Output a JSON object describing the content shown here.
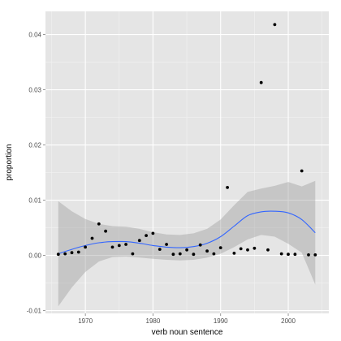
{
  "chart_data": {
    "type": "scatter",
    "title": "",
    "xlabel": "verb noun sentence",
    "ylabel": "proportion",
    "xlim": [
      1964.1,
      2006.0
    ],
    "ylim": [
      -0.0105,
      0.0442
    ],
    "x_ticks": [
      1970,
      1980,
      1990,
      2000
    ],
    "x_tick_labels": [
      "1970",
      "1980",
      "1990",
      "2000"
    ],
    "y_ticks": [
      -0.01,
      0.0,
      0.01,
      0.02,
      0.03,
      0.04
    ],
    "y_tick_labels": [
      "-0.01",
      "0.00",
      "0.01",
      "0.02",
      "0.03",
      "0.04"
    ],
    "grid": true,
    "colors": {
      "panel": "#e5e5e5",
      "grid_major": "#ffffff",
      "ribbon": "#999999",
      "line": "#3366ff",
      "points": "#000000"
    },
    "points": [
      {
        "x": 1966,
        "y": 0.0002
      },
      {
        "x": 1967,
        "y": 0.0003
      },
      {
        "x": 1968,
        "y": 0.0005
      },
      {
        "x": 1969,
        "y": 0.0006
      },
      {
        "x": 1970,
        "y": 0.0015
      },
      {
        "x": 1971,
        "y": 0.0031
      },
      {
        "x": 1972,
        "y": 0.0057
      },
      {
        "x": 1973,
        "y": 0.0044
      },
      {
        "x": 1974,
        "y": 0.0015
      },
      {
        "x": 1975,
        "y": 0.0018
      },
      {
        "x": 1976,
        "y": 0.002
      },
      {
        "x": 1977,
        "y": 0.0003
      },
      {
        "x": 1978,
        "y": 0.0027
      },
      {
        "x": 1979,
        "y": 0.0036
      },
      {
        "x": 1980,
        "y": 0.004
      },
      {
        "x": 1981,
        "y": 0.0011
      },
      {
        "x": 1982,
        "y": 0.002
      },
      {
        "x": 1983,
        "y": 0.0002
      },
      {
        "x": 1984,
        "y": 0.0003
      },
      {
        "x": 1985,
        "y": 0.001
      },
      {
        "x": 1986,
        "y": 0.0002
      },
      {
        "x": 1987,
        "y": 0.0019
      },
      {
        "x": 1988,
        "y": 0.0008
      },
      {
        "x": 1989,
        "y": 0.0003
      },
      {
        "x": 1990,
        "y": 0.0014
      },
      {
        "x": 1991,
        "y": 0.0123
      },
      {
        "x": 1992,
        "y": 0.0004
      },
      {
        "x": 1993,
        "y": 0.0012
      },
      {
        "x": 1994,
        "y": 0.001
      },
      {
        "x": 1995,
        "y": 0.0013
      },
      {
        "x": 1996,
        "y": 0.0313
      },
      {
        "x": 1997,
        "y": 0.001
      },
      {
        "x": 1998,
        "y": 0.0418
      },
      {
        "x": 1999,
        "y": 0.0003
      },
      {
        "x": 2000,
        "y": 0.0002
      },
      {
        "x": 2001,
        "y": 0.0002
      },
      {
        "x": 2002,
        "y": 0.0153
      },
      {
        "x": 2003,
        "y": 0.0001
      },
      {
        "x": 2004,
        "y": 0.0001
      }
    ],
    "smooth": {
      "x": [
        1966,
        1968,
        1970,
        1972,
        1974,
        1976,
        1978,
        1980,
        1982,
        1984,
        1986,
        1988,
        1990,
        1992,
        1994,
        1996,
        1998,
        2000,
        2002,
        2004
      ],
      "y": [
        0.0003,
        0.0011,
        0.0018,
        0.0023,
        0.0025,
        0.0025,
        0.0022,
        0.0018,
        0.0015,
        0.0014,
        0.0016,
        0.0022,
        0.0034,
        0.0053,
        0.0072,
        0.0079,
        0.008,
        0.0077,
        0.0065,
        0.0041
      ],
      "lower": [
        -0.0092,
        -0.0058,
        -0.003,
        -0.0011,
        -0.0003,
        -0.0002,
        -0.0004,
        -0.0006,
        -0.0008,
        -0.0009,
        -0.0008,
        -0.0004,
        0.0003,
        0.0015,
        0.0029,
        0.0037,
        0.0034,
        0.0021,
        0.0005,
        -0.0053
      ],
      "upper": [
        0.0098,
        0.008,
        0.0066,
        0.0057,
        0.0053,
        0.0052,
        0.0048,
        0.0042,
        0.0038,
        0.0037,
        0.004,
        0.0048,
        0.0065,
        0.0091,
        0.0115,
        0.0121,
        0.0126,
        0.0133,
        0.0125,
        0.0135
      ]
    }
  }
}
